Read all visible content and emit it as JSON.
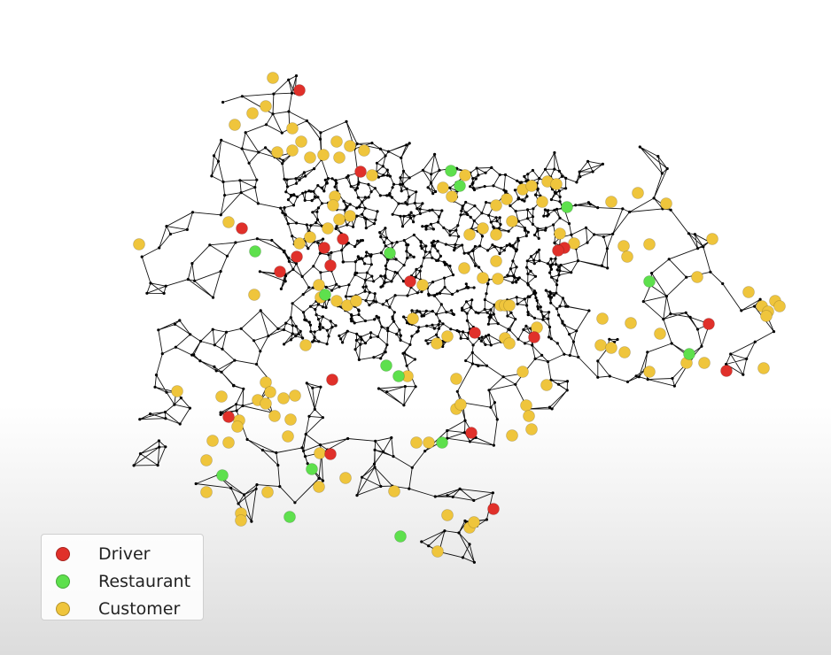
{
  "legend": {
    "items": [
      {
        "label": "Driver",
        "color": "#e0302a"
      },
      {
        "label": "Restaurant",
        "color": "#5ee04d"
      },
      {
        "label": "Customer",
        "color": "#efc53c"
      }
    ]
  },
  "colors": {
    "road": "#111111",
    "node": "#000000"
  }
}
